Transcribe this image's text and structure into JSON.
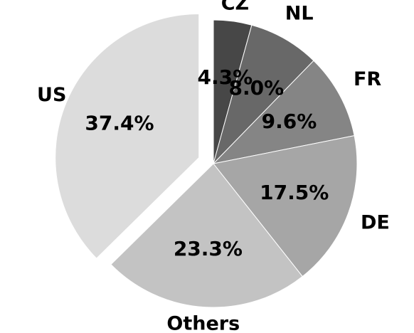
{
  "chart_data": {
    "type": "pie",
    "title": "",
    "categories": [
      "CZ",
      "NL",
      "FR",
      "DE",
      "Others",
      "US"
    ],
    "values": [
      4.3,
      8.0,
      9.6,
      17.5,
      23.3,
      37.4
    ],
    "value_labels": [
      "4.3%",
      "8.0%",
      "9.6%",
      "17.5%",
      "23.3%",
      "37.4%"
    ],
    "colors": [
      "#474747",
      "#686868",
      "#858585",
      "#a6a6a6",
      "#c3c3c3",
      "#dcdcdc"
    ],
    "exploded": [
      "US"
    ],
    "start_direction": "top",
    "direction": "clockwise",
    "legend": "none"
  }
}
